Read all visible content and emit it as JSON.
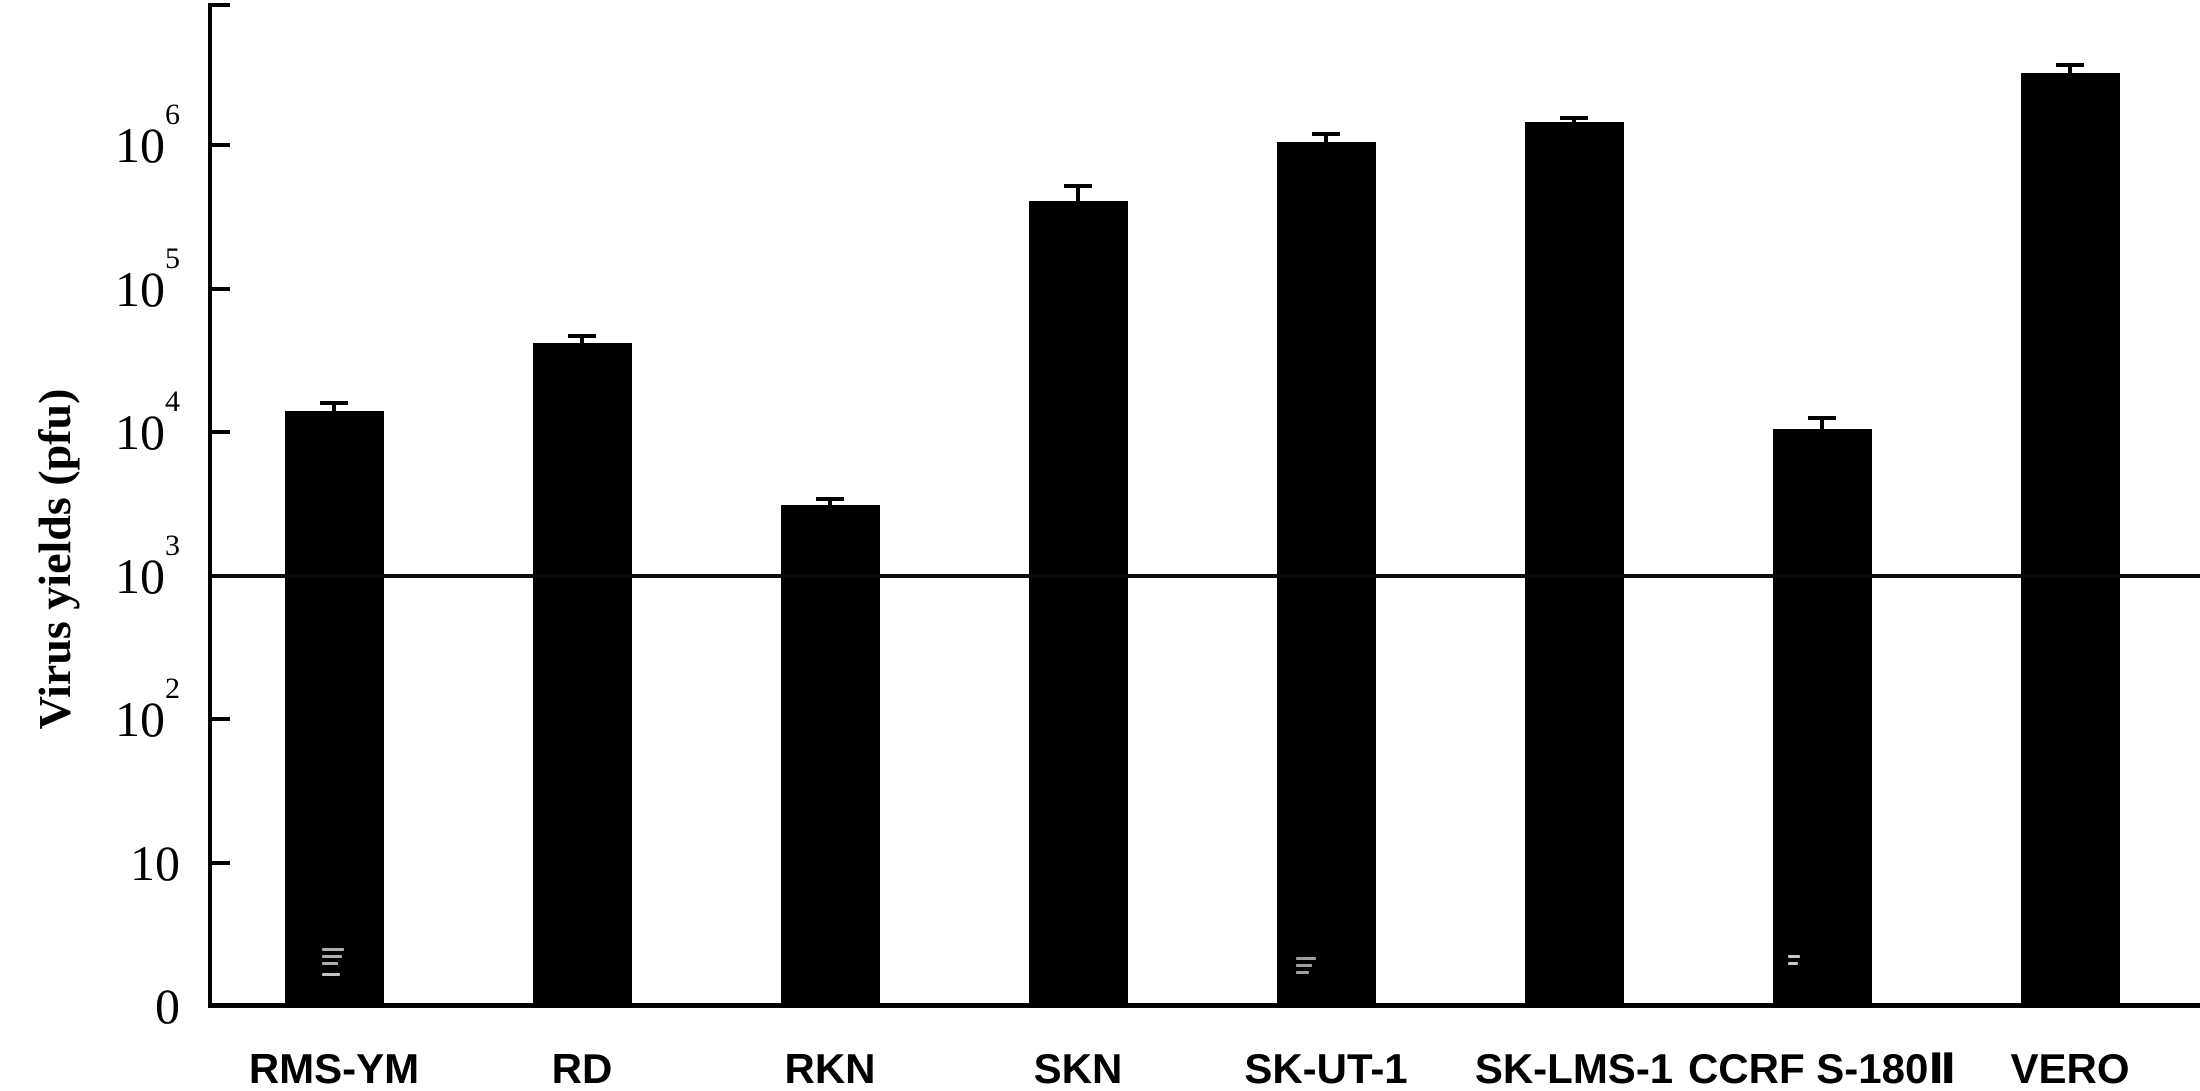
{
  "figure": {
    "background_color": "#ffffff",
    "bar_color": "#000000",
    "axis_color": "#000000"
  },
  "chart_data": {
    "type": "bar",
    "title": "",
    "xlabel": "",
    "ylabel": "Virus yields (pfu)",
    "y_scale": "log",
    "ylim": [
      1,
      10000000
    ],
    "grid": false,
    "legend": "none",
    "reference_line": {
      "value": 1000,
      "style": "solid horizontal line across plot at 10^3"
    },
    "categories": [
      "RMS-YM",
      "RD",
      "RKN",
      "SKN",
      "SK-UT-1",
      "SK-LMS-1",
      "CCRF S-180Ⅱ",
      "VERO"
    ],
    "values": [
      14000,
      42000,
      3100,
      410000,
      1050000,
      1450000,
      10500,
      3200000
    ],
    "errors_upper": [
      16000,
      47000,
      3400,
      520000,
      1200000,
      1550000,
      12500,
      3600000
    ],
    "yticks": [
      {
        "label": "",
        "exp": "",
        "value": 10000000
      },
      {
        "label": "10",
        "exp": "6",
        "value": 1000000
      },
      {
        "label": "10",
        "exp": "5",
        "value": 100000
      },
      {
        "label": "10",
        "exp": "4",
        "value": 10000
      },
      {
        "label": "10",
        "exp": "3",
        "value": 1000
      },
      {
        "label": "10",
        "exp": "2",
        "value": 100
      },
      {
        "label": "10",
        "exp": "",
        "value": 10
      },
      {
        "label": "0",
        "exp": "",
        "value": 1
      }
    ]
  }
}
